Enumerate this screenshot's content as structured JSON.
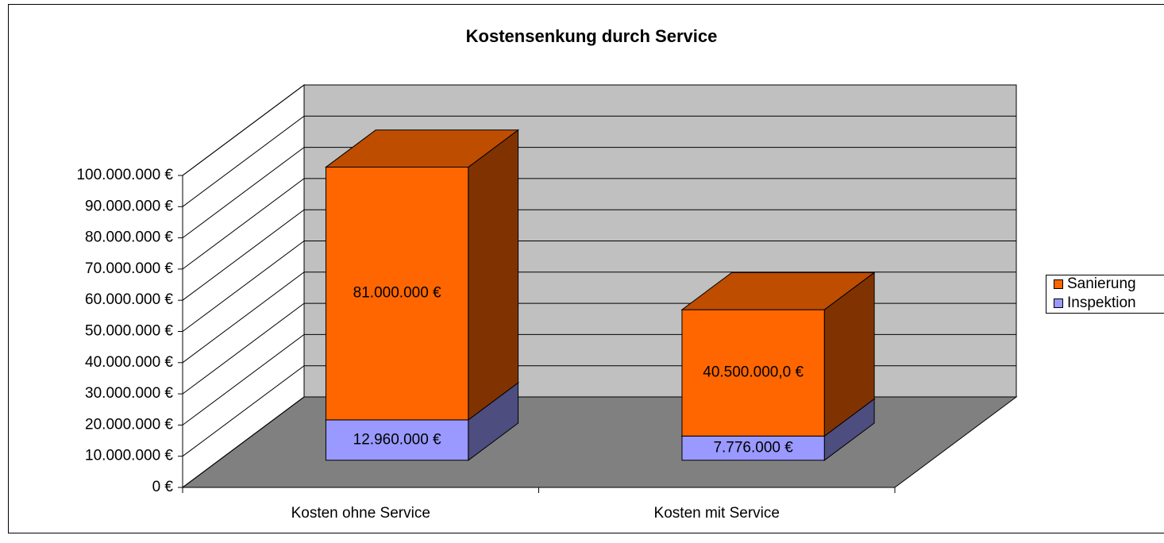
{
  "chart_data": {
    "type": "bar3d_stacked",
    "title": "Kostensenkung durch Service",
    "categories": [
      "Kosten ohne Service",
      "Kosten mit Service"
    ],
    "series": [
      {
        "name": "Inspektion",
        "color": "#9999ff",
        "values": [
          12960000,
          7776000
        ],
        "value_labels": [
          "12.960.000 €",
          "7.776.000 €"
        ]
      },
      {
        "name": "Sanierung",
        "color": "#ff6600",
        "values": [
          81000000,
          40500000
        ],
        "value_labels": [
          "81.000.000 €",
          "40.500.000,0 €"
        ]
      }
    ],
    "ylim": [
      0,
      100000000
    ],
    "yticks": [
      {
        "value": 0,
        "label": "0 €"
      },
      {
        "value": 10000000,
        "label": "10.000.000 €"
      },
      {
        "value": 20000000,
        "label": "20.000.000 €"
      },
      {
        "value": 30000000,
        "label": "30.000.000 €"
      },
      {
        "value": 40000000,
        "label": "40.000.000 €"
      },
      {
        "value": 50000000,
        "label": "50.000.000 €"
      },
      {
        "value": 60000000,
        "label": "60.000.000 €"
      },
      {
        "value": 70000000,
        "label": "70.000.000 €"
      },
      {
        "value": 80000000,
        "label": "80.000.000 €"
      },
      {
        "value": 90000000,
        "label": "90.000.000 €"
      },
      {
        "value": 100000000,
        "label": "100.000.000 €"
      }
    ],
    "grid": true,
    "legend": "right"
  }
}
